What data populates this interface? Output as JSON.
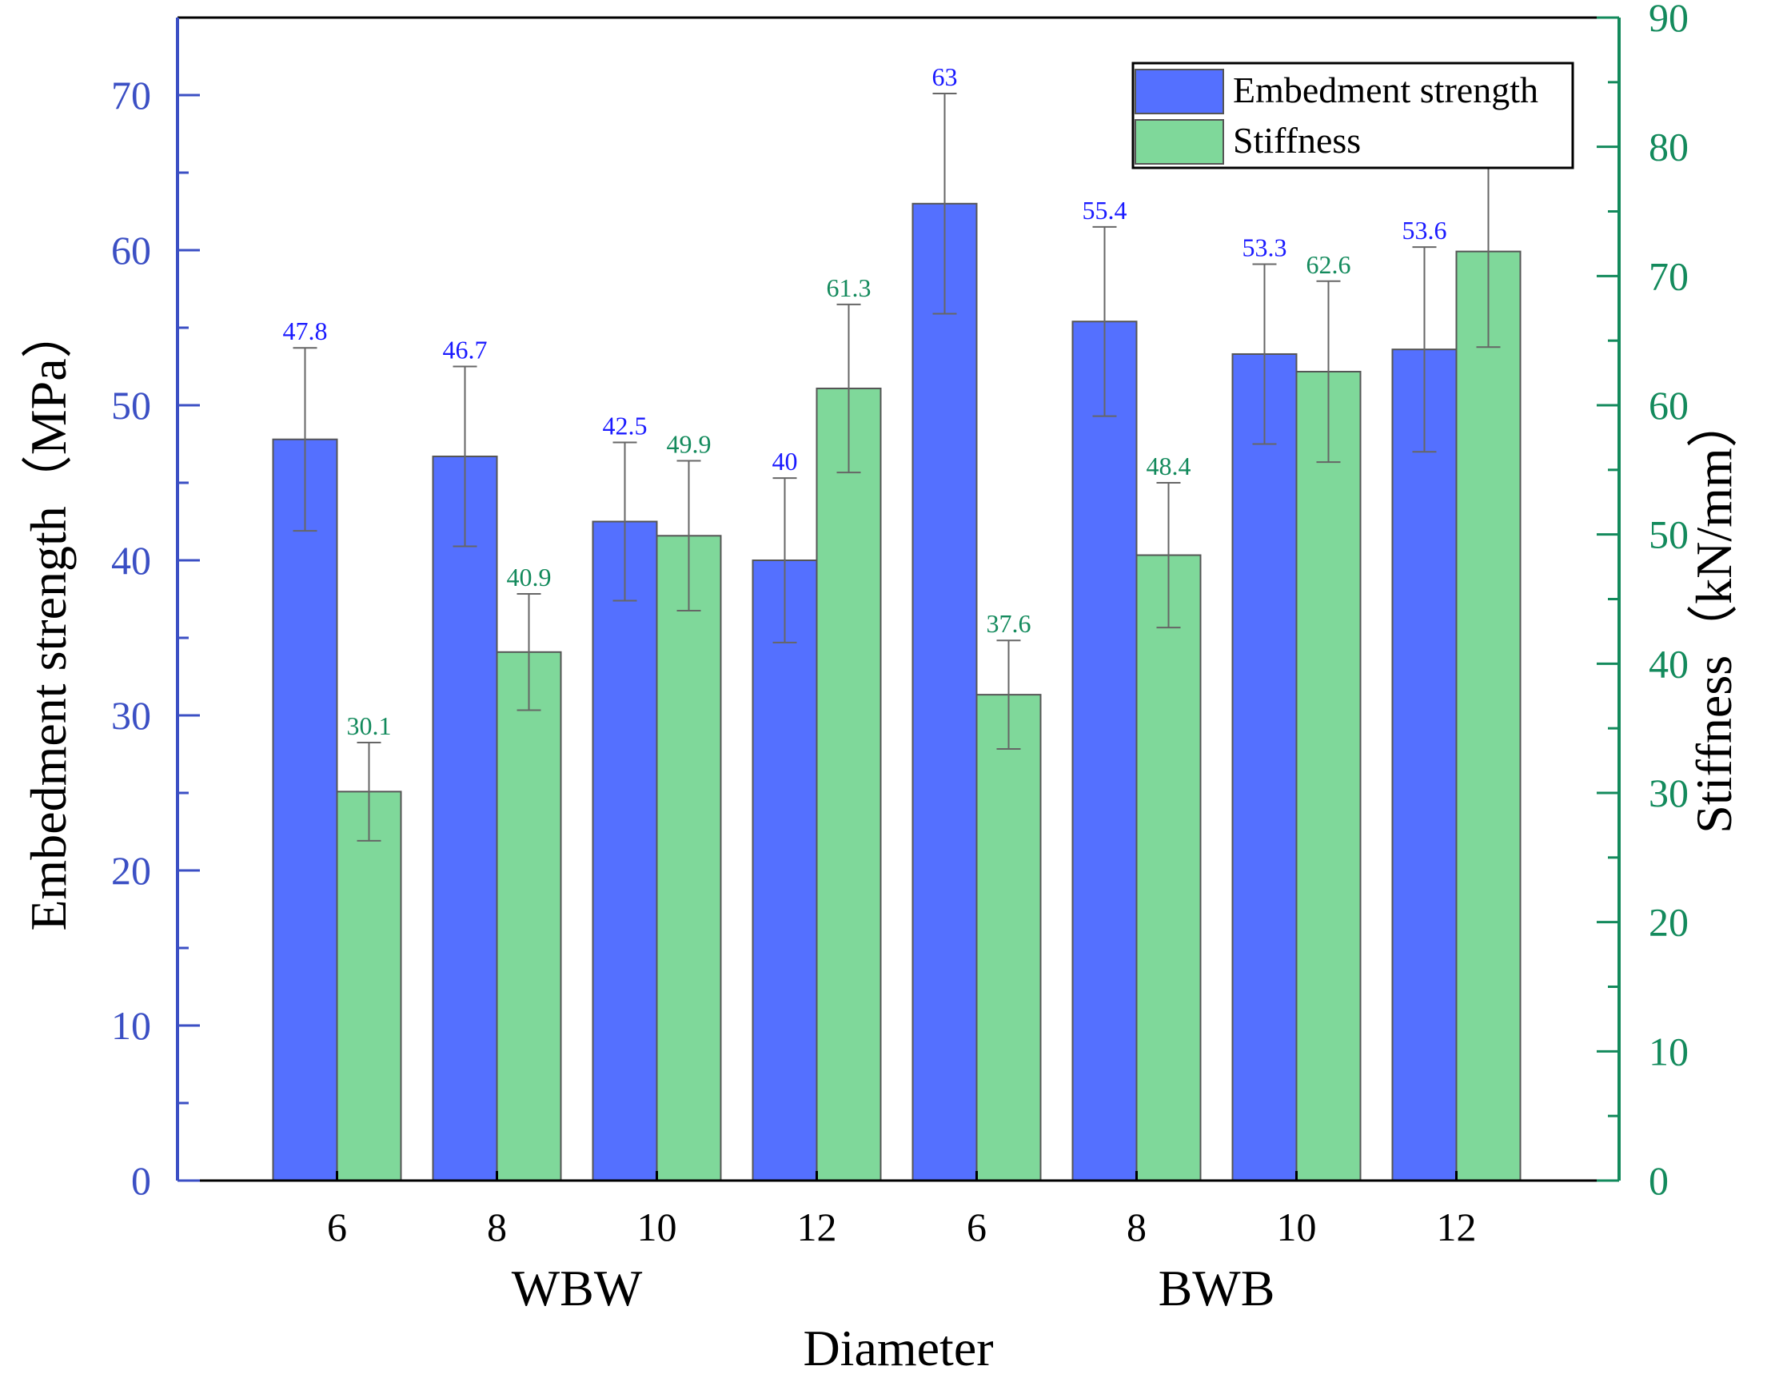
{
  "chart_data": {
    "type": "bar",
    "xlabel": "Diameter",
    "groups": [
      {
        "label": "WBW",
        "categories": [
          "6",
          "8",
          "10",
          "12"
        ]
      },
      {
        "label": "BWB",
        "categories": [
          "6",
          "8",
          "10",
          "12"
        ]
      }
    ],
    "series": [
      {
        "name": "Embedment strength",
        "axis": "left",
        "color": "#5470ff",
        "values": [
          47.8,
          46.7,
          42.5,
          40,
          63,
          55.4,
          53.3,
          53.6
        ],
        "errors": [
          5.9,
          5.8,
          5.1,
          5.3,
          7.1,
          6.1,
          5.8,
          6.6
        ],
        "labels": [
          "47.8",
          "46.7",
          "42.5",
          "40",
          "63",
          "55.4",
          "53.3",
          "53.6"
        ]
      },
      {
        "name": "Stiffness",
        "axis": "right",
        "color": "#7fd89a",
        "values": [
          30.1,
          40.9,
          49.9,
          61.3,
          37.6,
          48.4,
          62.6,
          71.9
        ],
        "errors": [
          3.8,
          4.5,
          5.8,
          6.5,
          4.2,
          5.6,
          7.0,
          7.4
        ],
        "labels": [
          "30.1",
          "40.9",
          "49.9",
          "61.3",
          "37.6",
          "48.4",
          "62.6",
          "71.9"
        ]
      }
    ],
    "y_left": {
      "label": "Embedment strength（MPa）",
      "range": [
        0,
        75
      ],
      "ticks": [
        0,
        10,
        20,
        30,
        40,
        50,
        60,
        70
      ],
      "color": "#3b4fc4"
    },
    "y_right": {
      "label": "Stiffness（kN/mm）",
      "range": [
        0,
        90
      ],
      "ticks": [
        0,
        10,
        20,
        30,
        40,
        50,
        60,
        70,
        80,
        90
      ],
      "color": "#138a5c"
    },
    "legend": {
      "position": "top-right"
    },
    "grid": false
  }
}
